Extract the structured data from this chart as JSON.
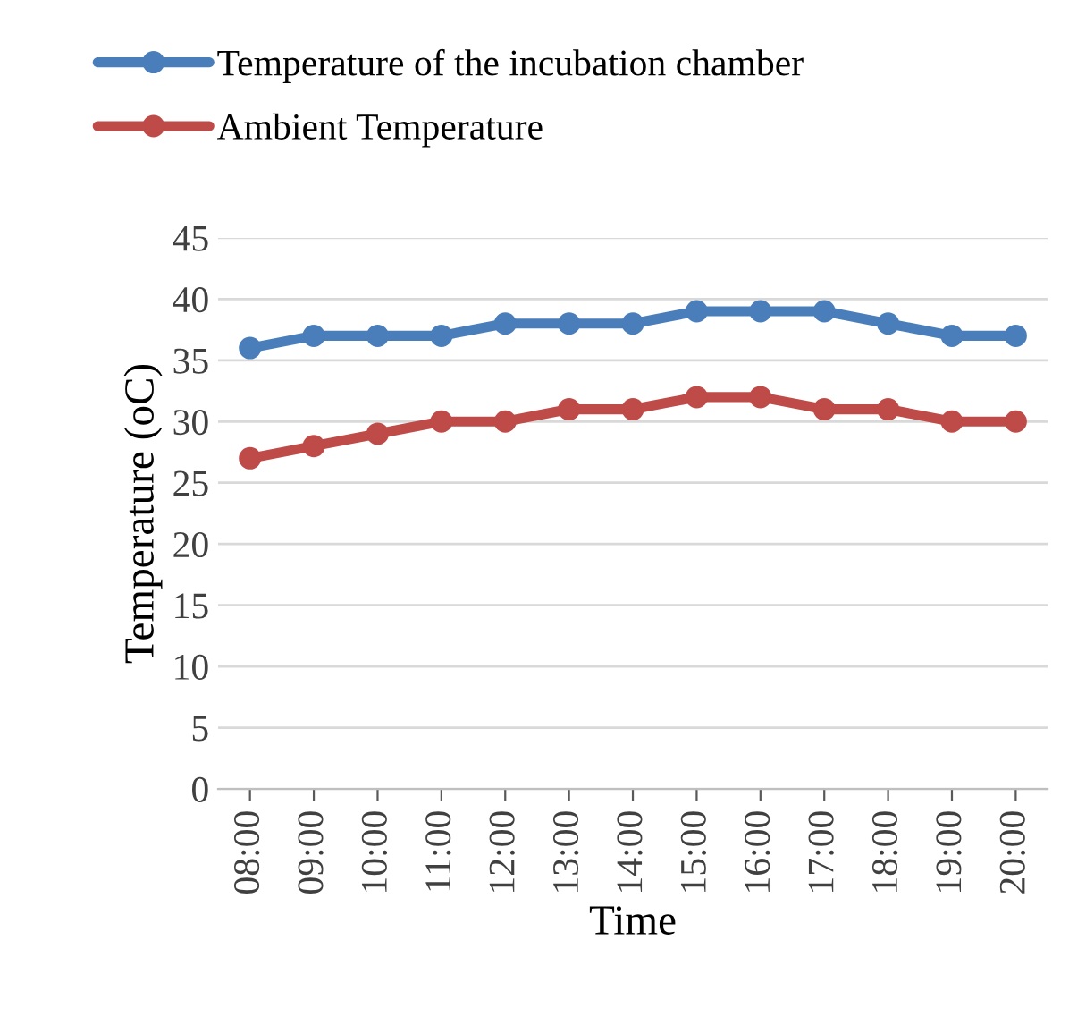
{
  "chart_data": {
    "type": "line",
    "xlabel": "Time",
    "ylabel": "Temperature (oC)",
    "categories": [
      "08:00",
      "09:00",
      "10:00",
      "11:00",
      "12:00",
      "13:00",
      "14:00",
      "15:00",
      "16:00",
      "17:00",
      "18:00",
      "19:00",
      "20:00"
    ],
    "series": [
      {
        "name": "Temperature of the incubation chamber",
        "color": "#4a7ebb",
        "values": [
          36,
          37,
          37,
          37,
          38,
          38,
          38,
          39,
          39,
          39,
          38,
          37,
          37
        ]
      },
      {
        "name": "Ambient Temperature",
        "color": "#be4b48",
        "values": [
          27,
          28,
          29,
          30,
          30,
          31,
          31,
          32,
          32,
          31,
          31,
          30,
          30
        ]
      }
    ],
    "ylim": [
      0,
      45
    ],
    "yticks": [
      0,
      5,
      10,
      15,
      20,
      25,
      30,
      35,
      40,
      45
    ],
    "grid": "y",
    "legend": "top",
    "marker": "circle",
    "line_style": "solid"
  }
}
